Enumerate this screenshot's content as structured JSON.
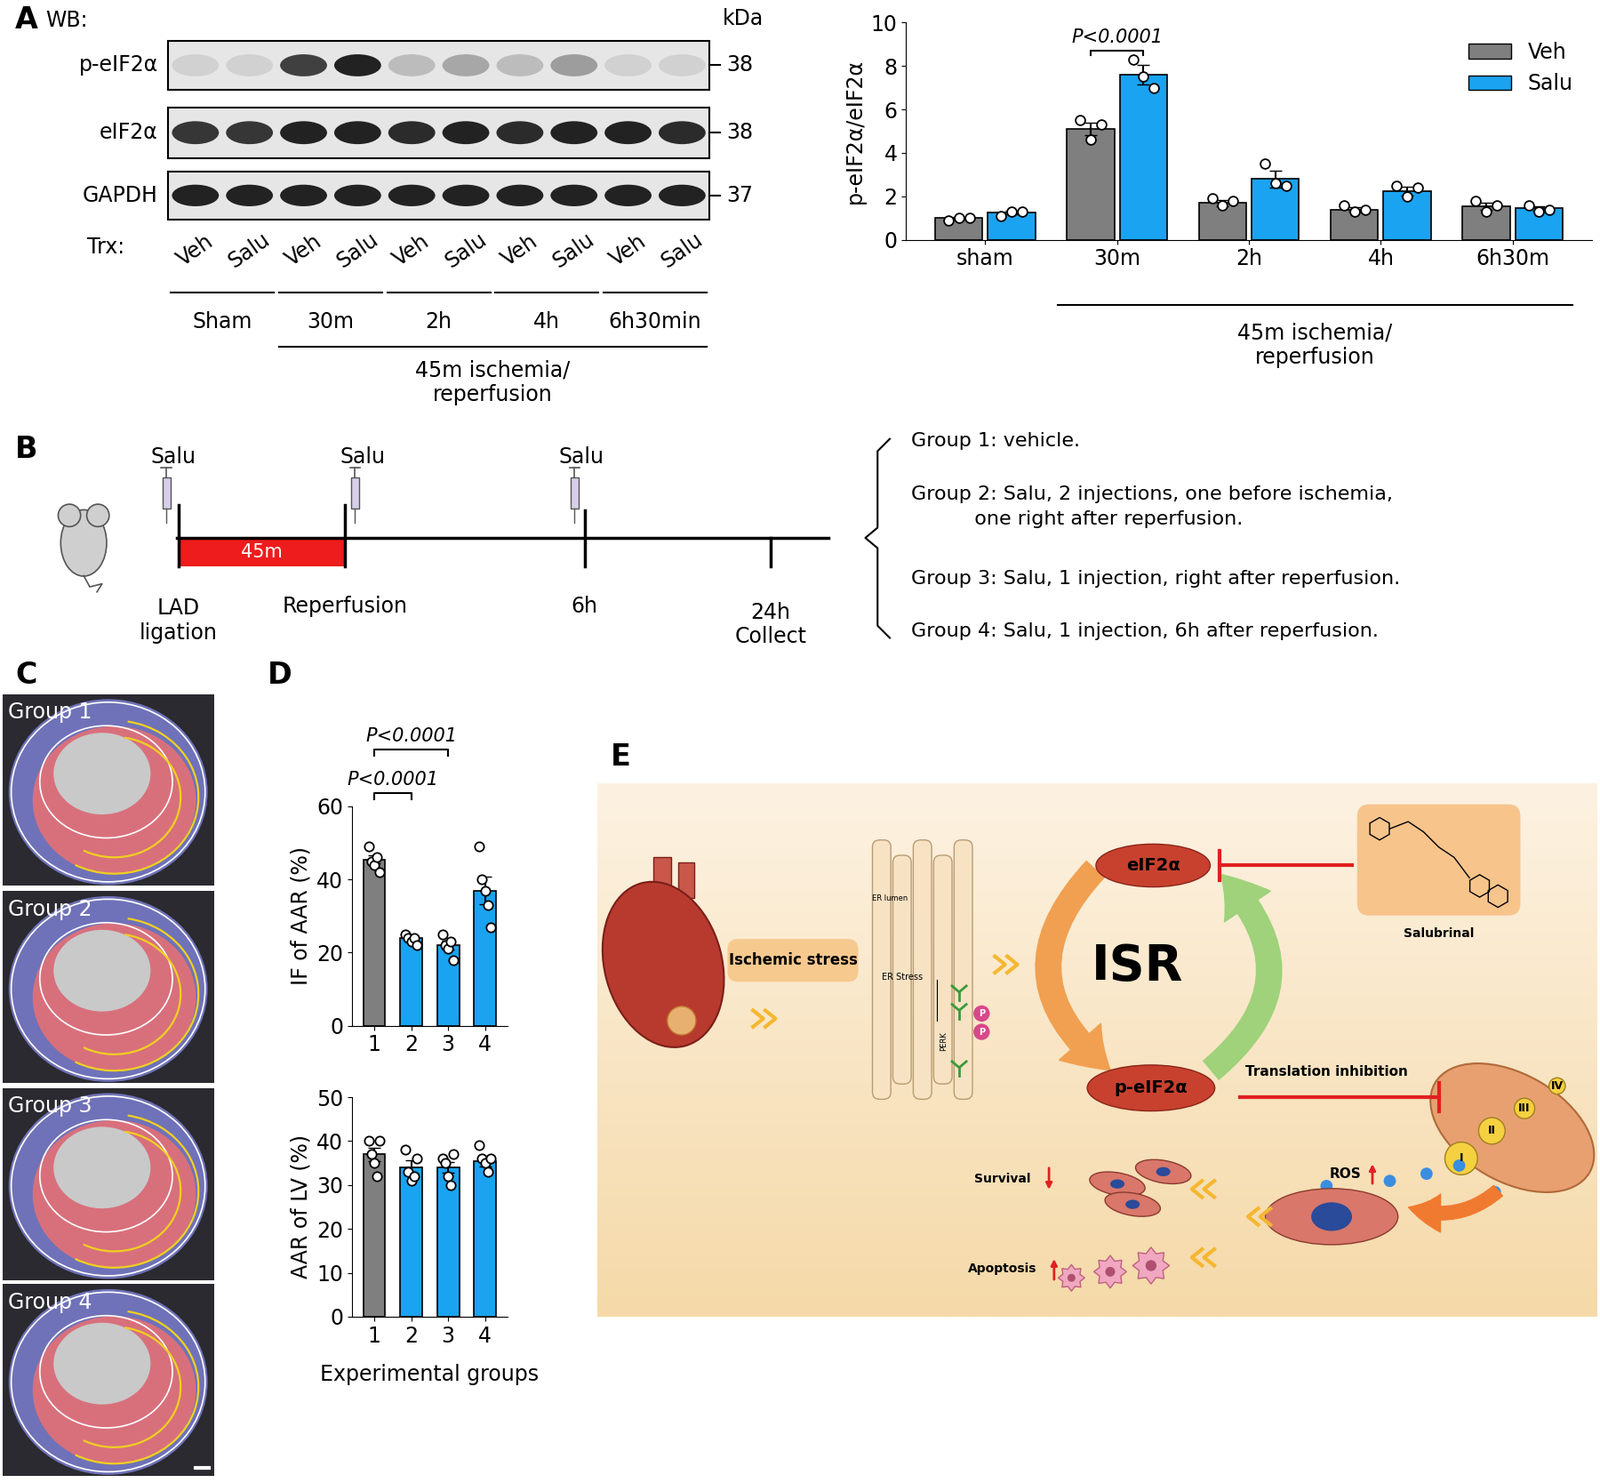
{
  "panel_letters": [
    "A",
    "B",
    "C",
    "D",
    "E"
  ],
  "western_blot": {
    "header": "WB:",
    "unit_label": "kDa",
    "treatment_label": "Trx:",
    "rows": [
      {
        "label": "p-eIF2α",
        "kDa": 38,
        "band_intensity": [
          0.1,
          0.1,
          0.8,
          0.95,
          0.2,
          0.3,
          0.2,
          0.35,
          0.1,
          0.1
        ]
      },
      {
        "label": "eIF2α",
        "kDa": 38,
        "band_intensity": [
          0.85,
          0.85,
          0.95,
          0.95,
          0.9,
          0.95,
          0.9,
          0.95,
          0.95,
          0.9
        ]
      },
      {
        "label": "GAPDH",
        "kDa": 37,
        "band_intensity": [
          0.95,
          0.95,
          0.95,
          0.95,
          0.95,
          0.95,
          0.95,
          0.95,
          0.95,
          0.95
        ]
      }
    ],
    "lanes": [
      "Veh",
      "Salu",
      "Veh",
      "Salu",
      "Veh",
      "Salu",
      "Veh",
      "Salu",
      "Veh",
      "Salu"
    ],
    "groups": [
      "Sham",
      "30m",
      "2h",
      "4h",
      "6h30min"
    ],
    "span_label": "45m ischemia/\nreperfusion"
  },
  "chart_data": [
    {
      "type": "bar",
      "categories": [
        "sham",
        "30m",
        "2h",
        "4h",
        "6h30m"
      ],
      "ylabel": "p-eIF2α/eIF2α",
      "ylim": [
        0,
        10
      ],
      "yticks": [
        0,
        2,
        4,
        6,
        8,
        10
      ],
      "legend": "upper right",
      "series": [
        {
          "name": "Veh",
          "color": "#7f7f7f",
          "values": [
            1.0,
            5.1,
            1.7,
            1.4,
            1.55
          ],
          "errors": [
            0.05,
            0.3,
            0.15,
            0.1,
            0.15
          ],
          "points": [
            [
              0.9,
              1.0,
              1.0
            ],
            [
              5.5,
              4.6,
              5.3
            ],
            [
              1.9,
              1.6,
              1.8
            ],
            [
              1.6,
              1.3,
              1.4
            ],
            [
              1.8,
              1.3,
              1.6
            ]
          ]
        },
        {
          "name": "Salu",
          "color": "#1aa3f0",
          "values": [
            1.25,
            7.6,
            2.8,
            2.25,
            1.45
          ],
          "errors": [
            0.07,
            0.45,
            0.4,
            0.2,
            0.1
          ],
          "points": [
            [
              1.1,
              1.3,
              1.3
            ],
            [
              8.3,
              7.5,
              7.0
            ],
            [
              3.5,
              2.6,
              2.5
            ],
            [
              2.5,
              2.0,
              2.4
            ],
            [
              1.6,
              1.3,
              1.4
            ]
          ]
        }
      ],
      "annotations": [
        {
          "text": "P<0.0001",
          "category": "30m"
        }
      ],
      "group_label": {
        "text": "45m ischemia/\nreperfusion",
        "categories": [
          "30m",
          "6h30m"
        ]
      }
    },
    {
      "type": "bar",
      "categories": [
        "1",
        "2",
        "3",
        "4"
      ],
      "ylabel": "IF of AAR (%)",
      "ylim": [
        0,
        60
      ],
      "yticks": [
        0,
        20,
        40,
        60
      ],
      "values": [
        45.5,
        24,
        22,
        37
      ],
      "errors": [
        1.2,
        0.7,
        1.2,
        3.7
      ],
      "points": [
        [
          49,
          45,
          44,
          46,
          42
        ],
        [
          25,
          24,
          23,
          24,
          22
        ],
        [
          25,
          22,
          21,
          23,
          18
        ],
        [
          49,
          40,
          37,
          33,
          27
        ]
      ],
      "colors": [
        "#7f7f7f",
        "#1aa3f0",
        "#1aa3f0",
        "#1aa3f0"
      ],
      "comparisons": [
        {
          "text": "P<0.0001",
          "between": [
            "1",
            "2"
          ]
        },
        {
          "text": "P<0.0001",
          "between": [
            "1",
            "3"
          ]
        }
      ]
    },
    {
      "type": "bar",
      "categories": [
        "1",
        "2",
        "3",
        "4"
      ],
      "ylabel": "AAR of LV (%)",
      "xlabel": "Experimental groups",
      "ylim": [
        0,
        50
      ],
      "yticks": [
        0,
        10,
        20,
        30,
        40,
        50
      ],
      "values": [
        37,
        34,
        34,
        35.5
      ],
      "errors": [
        1.5,
        1.6,
        1.2,
        1.2
      ],
      "points": [
        [
          40,
          37,
          35,
          32,
          40
        ],
        [
          38,
          33,
          31,
          32,
          36
        ],
        [
          36,
          35,
          32,
          30,
          37
        ],
        [
          39,
          36,
          35,
          33,
          36
        ]
      ],
      "colors": [
        "#7f7f7f",
        "#1aa3f0",
        "#1aa3f0",
        "#1aa3f0"
      ]
    }
  ],
  "timeline": {
    "injections": [
      "Salu",
      "Salu",
      "Salu"
    ],
    "ischemia": "45m",
    "events": [
      "LAD\nligation",
      "Reperfusion",
      "6h",
      "24h\nCollect"
    ],
    "groups": [
      "Group 1: vehicle.",
      "Group 2: Salu, 2 injections, one before ischemia,\n          one right after reperfusion.",
      "Group 3: Salu, 1 injection, right after reperfusion.",
      "Group 4: Salu, 1 injection, 6h after reperfusion."
    ]
  },
  "images": {
    "labels": [
      "Group 1",
      "Group 2",
      "Group 3",
      "Group 4"
    ]
  },
  "schematic": {
    "ischemic_stress": "Ischemic stress",
    "er_stress": "ER Stress",
    "er_lumen": "ER lumen",
    "perk": "PERK",
    "phospho": "P",
    "eif2a": "eIF2α",
    "isr": "ISR",
    "p_eif2a": "p-eIF2α",
    "drug": "Salubrinal",
    "translation": "Translation inhibition",
    "complexes": [
      "I",
      "II",
      "III",
      "IV"
    ],
    "ros": "ROS",
    "survival": "Survival",
    "apoptosis": "Apoptosis"
  }
}
